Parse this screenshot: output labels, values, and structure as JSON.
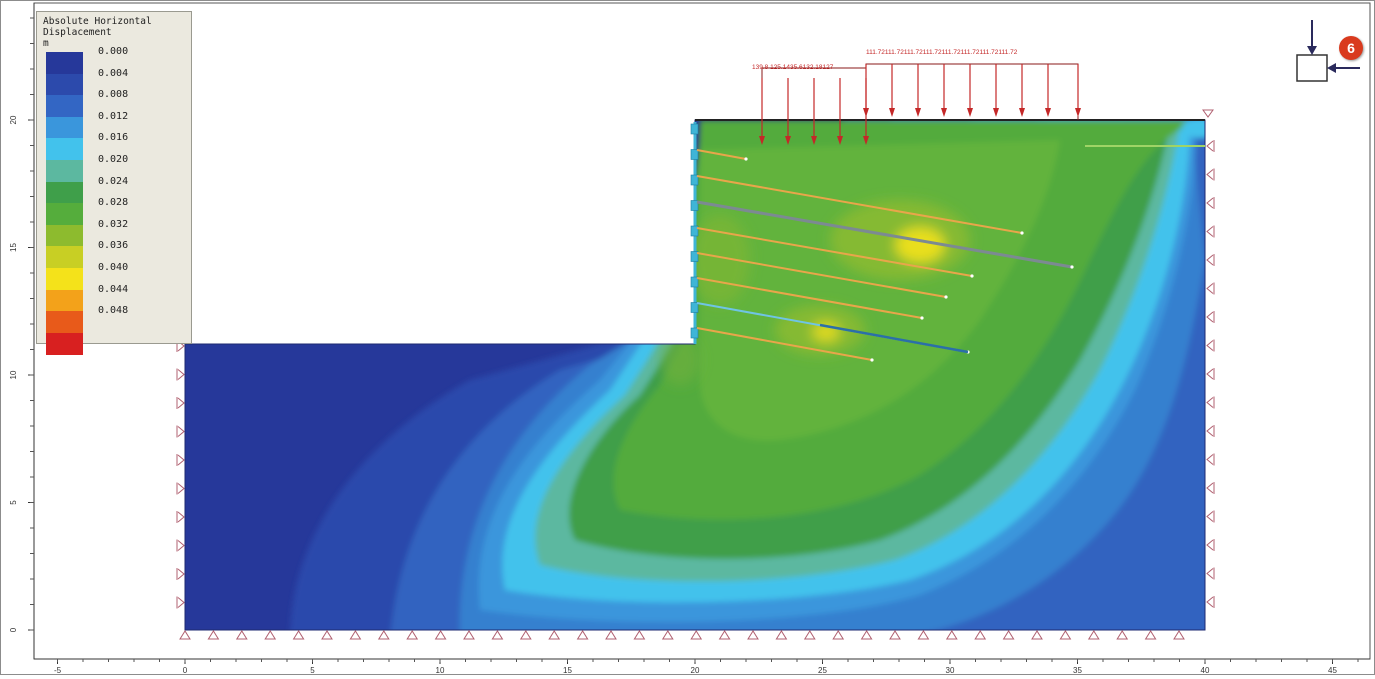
{
  "legend": {
    "title": "Absolute Horizontal\nDisplacement\nm",
    "levels": [
      {
        "value": "0.000",
        "color": "#26389a"
      },
      {
        "value": "0.004",
        "color": "#2c4aac"
      },
      {
        "value": "0.008",
        "color": "#3366c4"
      },
      {
        "value": "0.012",
        "color": "#3a96dc"
      },
      {
        "value": "0.016",
        "color": "#42c2ec"
      },
      {
        "value": "0.020",
        "color": "#5cb8a0"
      },
      {
        "value": "0.024",
        "color": "#3f9f4a"
      },
      {
        "value": "0.028",
        "color": "#55ad3c"
      },
      {
        "value": "0.032",
        "color": "#8dbb2e"
      },
      {
        "value": "0.036",
        "color": "#c8cf24"
      },
      {
        "value": "0.040",
        "color": "#f4e21a"
      },
      {
        "value": "0.044",
        "color": "#f3a21a"
      },
      {
        "value": "0.048",
        "color": "#e85a1a"
      },
      {
        "value": "",
        "color": "#d82020"
      }
    ]
  },
  "axes": {
    "x_ticks": [
      "-5",
      "0",
      "5",
      "10",
      "15",
      "20",
      "25",
      "30",
      "35",
      "40",
      "45"
    ],
    "y_ticks": [
      "0",
      "5",
      "10",
      "15",
      "20"
    ]
  },
  "loads": {
    "left_label": "139.8 125.1435.6132.18127",
    "right_label": "111.72111.72111.72111.72111.72111.72111.72111.72"
  },
  "badge": {
    "number": "6"
  },
  "colors": {
    "anchor": "#e8a64a",
    "strut": "#7c8a92",
    "load": "#c42828",
    "support": "#b06070"
  }
}
